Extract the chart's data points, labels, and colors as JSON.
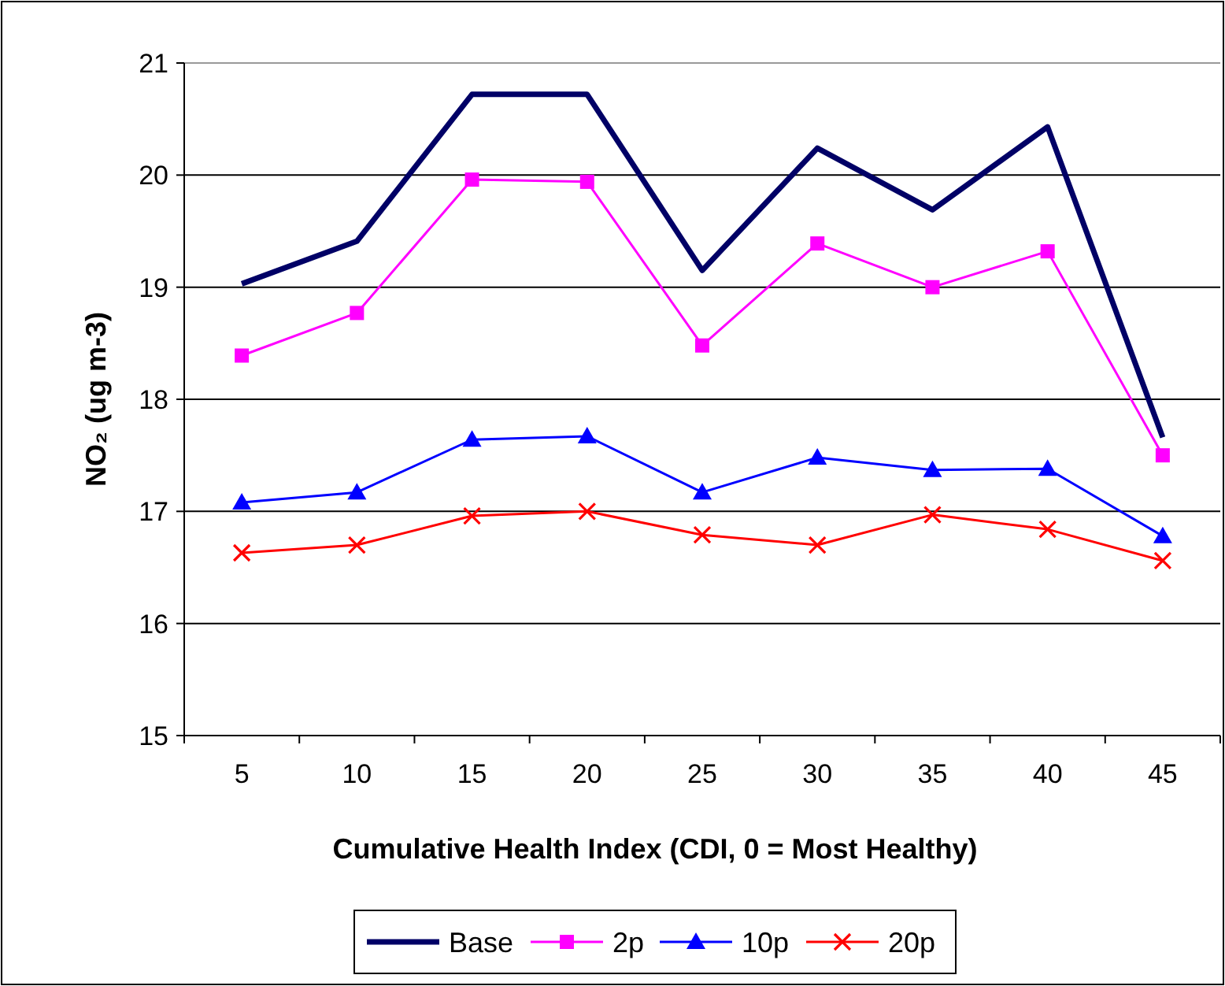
{
  "chart_data": {
    "type": "line",
    "xlabel": "Cumulative Health Index (CDI, 0 = Most Healthy)",
    "ylabel": "NO₂ (ug m-3)",
    "categories": [
      "5",
      "10",
      "15",
      "20",
      "25",
      "30",
      "35",
      "40",
      "45"
    ],
    "series": [
      {
        "name": "Base",
        "color": "#000066",
        "marker": "none",
        "values": [
          19.03,
          19.41,
          20.72,
          20.72,
          19.15,
          20.24,
          19.69,
          20.43,
          17.66
        ]
      },
      {
        "name": "2p",
        "color": "#ff00ff",
        "marker": "square",
        "values": [
          18.39,
          18.77,
          19.96,
          19.94,
          18.48,
          19.39,
          19.0,
          19.32,
          17.5
        ]
      },
      {
        "name": "10p",
        "color": "#0000ff",
        "marker": "triangle",
        "values": [
          17.08,
          17.17,
          17.64,
          17.67,
          17.17,
          17.48,
          17.37,
          17.38,
          16.78
        ]
      },
      {
        "name": "20p",
        "color": "#ff0000",
        "marker": "cross",
        "values": [
          16.63,
          16.7,
          16.96,
          17.0,
          16.79,
          16.7,
          16.97,
          16.84,
          16.56
        ]
      }
    ],
    "ylim": [
      15,
      21
    ],
    "yticks": [
      15,
      16,
      17,
      18,
      19,
      20,
      21
    ],
    "grid": "y",
    "legend": "bottom"
  }
}
